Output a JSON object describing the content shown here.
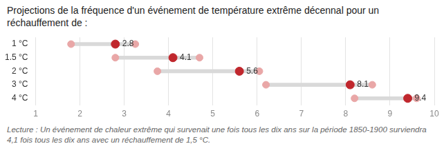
{
  "chart_data": {
    "type": "dumbbell",
    "title": "Projections de la fréquence d'un événement de température extrême décennal pour un réchauffement de :",
    "caption": "Lecture : Un événement de chaleur extrême qui survenait une fois tous les dix ans sur la période 1850-1900 surviendra 4,1 fois tous les dix ans avec un réchauffement de 1,5 °C.",
    "categories": [
      "1 °C",
      "1.5 °C",
      "2 °C",
      "3 °C",
      "4 °C"
    ],
    "values": [
      2.8,
      4.1,
      5.6,
      8.1,
      9.4
    ],
    "low": [
      1.8,
      2.8,
      3.75,
      6.2,
      8.2
    ],
    "high": [
      3.25,
      4.7,
      6.05,
      8.6,
      9.6
    ],
    "color": "#c0272d",
    "orientation": "horizontal",
    "xlim": [
      1,
      10
    ],
    "xticks": [
      1,
      2,
      3,
      4,
      5,
      6,
      7,
      8,
      9,
      10
    ],
    "grid": true,
    "data_labels": true
  }
}
